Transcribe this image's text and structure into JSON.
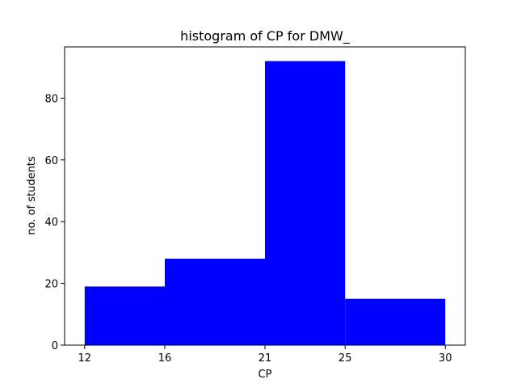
{
  "chart_data": {
    "type": "bar",
    "title": "histogram of CP for DMW_",
    "xlabel": "CP",
    "ylabel": "no. of students",
    "bins": [
      {
        "start": 12,
        "end": 16,
        "value": 19
      },
      {
        "start": 16,
        "end": 21,
        "value": 28
      },
      {
        "start": 21,
        "end": 25,
        "value": 92
      },
      {
        "start": 25,
        "end": 30,
        "value": 15
      }
    ],
    "x_ticks": [
      12,
      16,
      21,
      25,
      30
    ],
    "y_ticks": [
      0,
      20,
      40,
      60,
      80
    ],
    "xlim": [
      11,
      31
    ],
    "ylim": [
      0,
      96.6
    ],
    "bar_color": "#0000ff",
    "grid": false,
    "legend": false
  }
}
